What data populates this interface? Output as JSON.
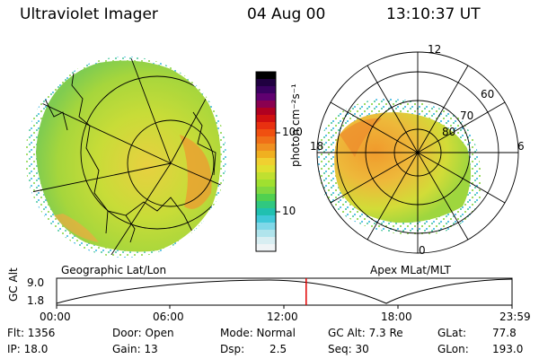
{
  "header": {
    "title": "Ultraviolet Imager",
    "date": "04 Aug 00",
    "time": "13:10:37 UT"
  },
  "left_panel": {
    "caption": "Geographic Lat/Lon"
  },
  "right_panel": {
    "caption": "Apex MLat/MLT",
    "mlt_labels": [
      "12",
      "18",
      "6",
      "0"
    ],
    "mlat_labels": [
      "60",
      "70",
      "80"
    ]
  },
  "colorbar": {
    "unit_label": "photon cm⁻²s⁻¹",
    "ticks": [
      "100",
      "10"
    ],
    "colors": [
      "#000000",
      "#200040",
      "#3a0060",
      "#600070",
      "#8a0050",
      "#b00020",
      "#d01010",
      "#e83010",
      "#f05010",
      "#f07018",
      "#f09020",
      "#f0b020",
      "#f0d030",
      "#e0e030",
      "#c0e030",
      "#a0e030",
      "#80d840",
      "#50d050",
      "#30c880",
      "#20c0b0",
      "#40c8d8",
      "#80d8e8",
      "#b0e4ec",
      "#d8eef2",
      "#f0f4f6"
    ]
  },
  "altitude_plot": {
    "ylabel": "GC Alt",
    "yticks": [
      "9.0",
      "1.8"
    ],
    "xticks": [
      "00:00",
      "06:00",
      "12:00",
      "18:00",
      "23:59"
    ],
    "current_time_fraction": 0.548,
    "line_color": "#e00000"
  },
  "status": {
    "flt": "Flt: 1356",
    "ip": "IP: 18.0",
    "door": "Door: Open",
    "gain": "Gain: 13",
    "mode": "Mode: Normal",
    "dsp_label": "Dsp:",
    "dsp_value": "2.5",
    "gc_alt": "GC Alt: 7.3 Re",
    "seq": "Seq: 30",
    "glat_label": "GLat:",
    "glat_value": "77.8",
    "glon_label": "GLon:",
    "glon_value": "193.0"
  }
}
